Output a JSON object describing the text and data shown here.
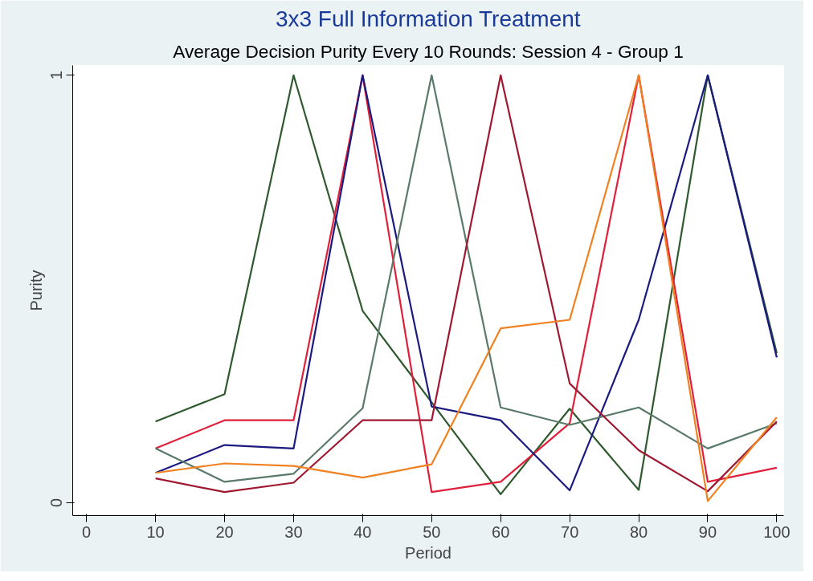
{
  "chart_data": {
    "type": "line",
    "title": "3x3 Full Information Treatment",
    "subtitle": "Average Decision Purity Every 10 Rounds: Session 4 - Group 1",
    "xlabel": "Period",
    "ylabel": "Purity",
    "x": [
      10,
      20,
      30,
      40,
      50,
      60,
      70,
      80,
      90,
      100
    ],
    "series": [
      {
        "color": "#2e5a2e",
        "values": [
          0.19,
          0.254,
          1,
          0.449,
          0.235,
          0.02,
          0.22,
          0.03,
          1,
          0.35
        ]
      },
      {
        "color": "#e0203a",
        "values": [
          0.127,
          0.193,
          0.193,
          1,
          0.025,
          0.049,
          0.186,
          1,
          0.049,
          0.082
        ]
      },
      {
        "color": "#1a1a80",
        "values": [
          0.07,
          0.135,
          0.127,
          1,
          0.225,
          0.193,
          0.029,
          0.428,
          1,
          0.34
        ]
      },
      {
        "color": "#5a7a6a",
        "values": [
          0.127,
          0.049,
          0.068,
          0.221,
          1,
          0.223,
          0.182,
          0.223,
          0.127,
          0.186
        ]
      },
      {
        "color": "#a01830",
        "values": [
          0.057,
          0.025,
          0.047,
          0.193,
          0.193,
          1,
          0.279,
          0.123,
          0.027,
          0.19
        ]
      },
      {
        "color": "#f08020",
        "values": [
          0.07,
          0.092,
          0.086,
          0.059,
          0.09,
          0.408,
          0.428,
          1,
          0.004,
          0.2
        ]
      }
    ],
    "xlim": [
      -2,
      101
    ],
    "ylim": [
      -0.03,
      1.023
    ],
    "xticks": [
      0,
      10,
      20,
      30,
      40,
      50,
      60,
      70,
      80,
      90,
      100
    ],
    "yticks": [
      0,
      1
    ]
  }
}
